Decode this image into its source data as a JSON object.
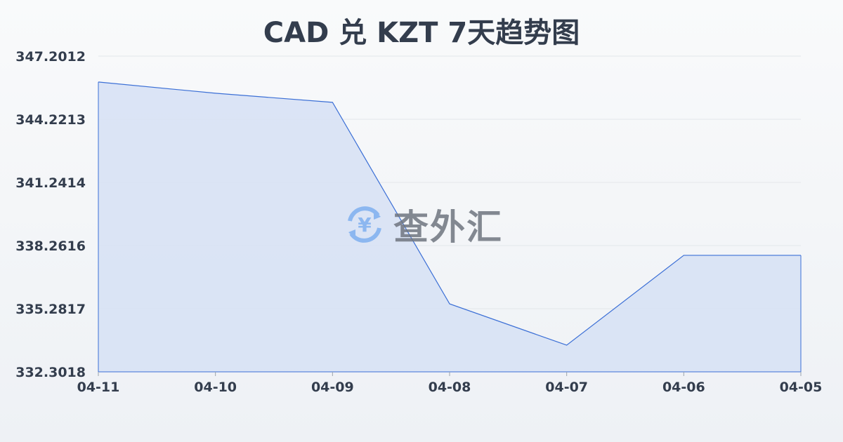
{
  "chart_data": {
    "type": "area",
    "title": "CAD 兑 KZT 7天趋势图",
    "categories": [
      "04-11",
      "04-10",
      "04-09",
      "04-08",
      "04-07",
      "04-06",
      "04-05"
    ],
    "series": [
      {
        "values": [
          345.98,
          345.45,
          345.02,
          335.51,
          333.56,
          337.8,
          337.8
        ]
      }
    ],
    "yticks": [
      "347.2012",
      "344.2213",
      "341.2414",
      "338.2616",
      "335.2817",
      "332.3018"
    ],
    "ylim": [
      332.3018,
      347.2012
    ],
    "grid": true,
    "colors": {
      "line": "#3b6fd6",
      "fill": "#d6e1f5"
    }
  },
  "watermark": {
    "text": "查外汇",
    "icon": "yen-exchange-icon"
  }
}
